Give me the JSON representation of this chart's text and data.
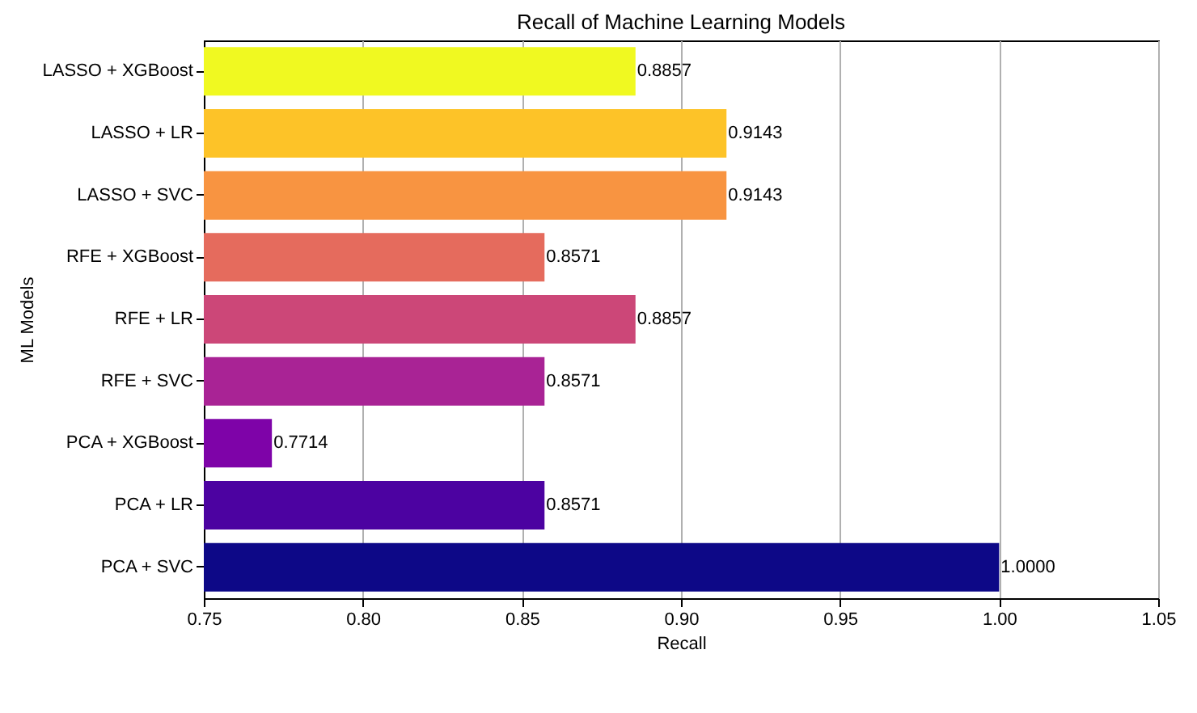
{
  "chart_data": {
    "type": "bar",
    "orientation": "horizontal",
    "title": "Recall of Machine Learning Models",
    "xlabel": "Recall",
    "ylabel": "ML Models",
    "categories": [
      "LASSO + XGBoost",
      "LASSO + LR",
      "LASSO + SVC",
      "RFE + XGBoost",
      "RFE + LR",
      "RFE + SVC",
      "PCA + XGBoost",
      "PCA + LR",
      "PCA + SVC"
    ],
    "values": [
      0.8857,
      0.9143,
      0.9143,
      0.8571,
      0.8857,
      0.8571,
      0.7714,
      0.8571,
      1.0
    ],
    "value_labels": [
      "0.8857",
      "0.9143",
      "0.9143",
      "0.8571",
      "0.8857",
      "0.8571",
      "0.7714",
      "0.8571",
      "1.0000"
    ],
    "colors": [
      "#f0f921",
      "#fdc328",
      "#f89441",
      "#e56b5d",
      "#cc4778",
      "#a92395",
      "#7e03a8",
      "#4c02a1",
      "#0d0887"
    ],
    "xlim": [
      0.75,
      1.05
    ],
    "xticks": [
      {
        "value": 0.75,
        "label": "0.75"
      },
      {
        "value": 0.8,
        "label": "0.80"
      },
      {
        "value": 0.85,
        "label": "0.85"
      },
      {
        "value": 0.9,
        "label": "0.90"
      },
      {
        "value": 0.95,
        "label": "0.95"
      },
      {
        "value": 1.0,
        "label": "1.00"
      },
      {
        "value": 1.05,
        "label": "1.05"
      }
    ],
    "grid": "x"
  }
}
